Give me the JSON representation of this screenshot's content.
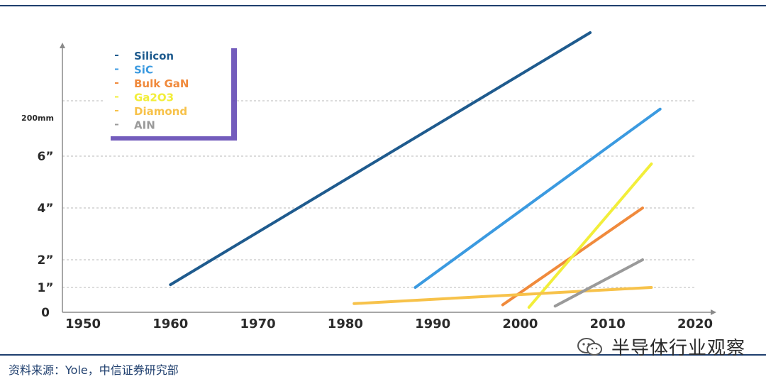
{
  "chart_data": {
    "type": "line",
    "x_ticks": [
      "1950",
      "1960",
      "1970",
      "1980",
      "1990",
      "2000",
      "2010",
      "2020"
    ],
    "y_ticks": [
      {
        "label": "0",
        "value": 0
      },
      {
        "label": "1”",
        "value": 1
      },
      {
        "label": "2”",
        "value": 2
      },
      {
        "label": "4”",
        "value": 4
      },
      {
        "label": "6”",
        "value": 6
      },
      {
        "label": "200mm",
        "value": 8
      }
    ],
    "gridlines": [
      1,
      2,
      4,
      6,
      8
    ],
    "legend_position": "top-left",
    "series": [
      {
        "name": "Silicon",
        "color": "#1f5b8e",
        "x": [
          1960,
          2008
        ],
        "y": [
          1.1,
          10.5
        ]
      },
      {
        "name": "SiC",
        "color": "#3b9ae0",
        "x": [
          1988,
          2016
        ],
        "y": [
          1.0,
          7.7
        ]
      },
      {
        "name": "Bulk GaN",
        "color": "#f08a3c",
        "x": [
          1998,
          2014
        ],
        "y": [
          0.3,
          4.0
        ]
      },
      {
        "name": "Ga2O3",
        "color": "#f2ee3a",
        "x": [
          2001,
          2015
        ],
        "y": [
          0.2,
          5.7
        ]
      },
      {
        "name": "Diamond",
        "color": "#f7c24a",
        "x": [
          1981,
          2015
        ],
        "y": [
          0.35,
          1.0
        ]
      },
      {
        "name": "AIN",
        "color": "#9a9a9a",
        "x": [
          2004,
          2014
        ],
        "y": [
          0.25,
          2.0
        ]
      }
    ]
  },
  "footer": {
    "source": "资料来源：Yole，中信证券研究部",
    "watermark": "半导体行业观察"
  }
}
